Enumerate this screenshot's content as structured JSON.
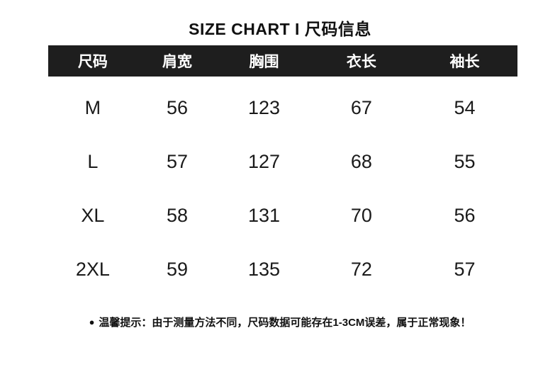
{
  "title": "SIZE CHART I 尺码信息",
  "table": {
    "headers": [
      "尺码",
      "肩宽",
      "胸围",
      "衣长",
      "袖长"
    ],
    "rows": [
      {
        "size": "M",
        "values": [
          "56",
          "123",
          "67",
          "54"
        ]
      },
      {
        "size": "L",
        "values": [
          "57",
          "127",
          "68",
          "55"
        ]
      },
      {
        "size": "XL",
        "values": [
          "58",
          "131",
          "70",
          "56"
        ]
      },
      {
        "size": "2XL",
        "values": [
          "59",
          "135",
          "72",
          "57"
        ]
      }
    ]
  },
  "note": {
    "bullet": "●",
    "text": "温馨提示：由于测量方法不同，尺码数据可能存在1-3CM误差，属于正常现象！"
  },
  "colors": {
    "header_bg": "#1e1e1e",
    "header_text": "#ffffff",
    "body_text": "#1a1a1a",
    "background": "#ffffff"
  }
}
